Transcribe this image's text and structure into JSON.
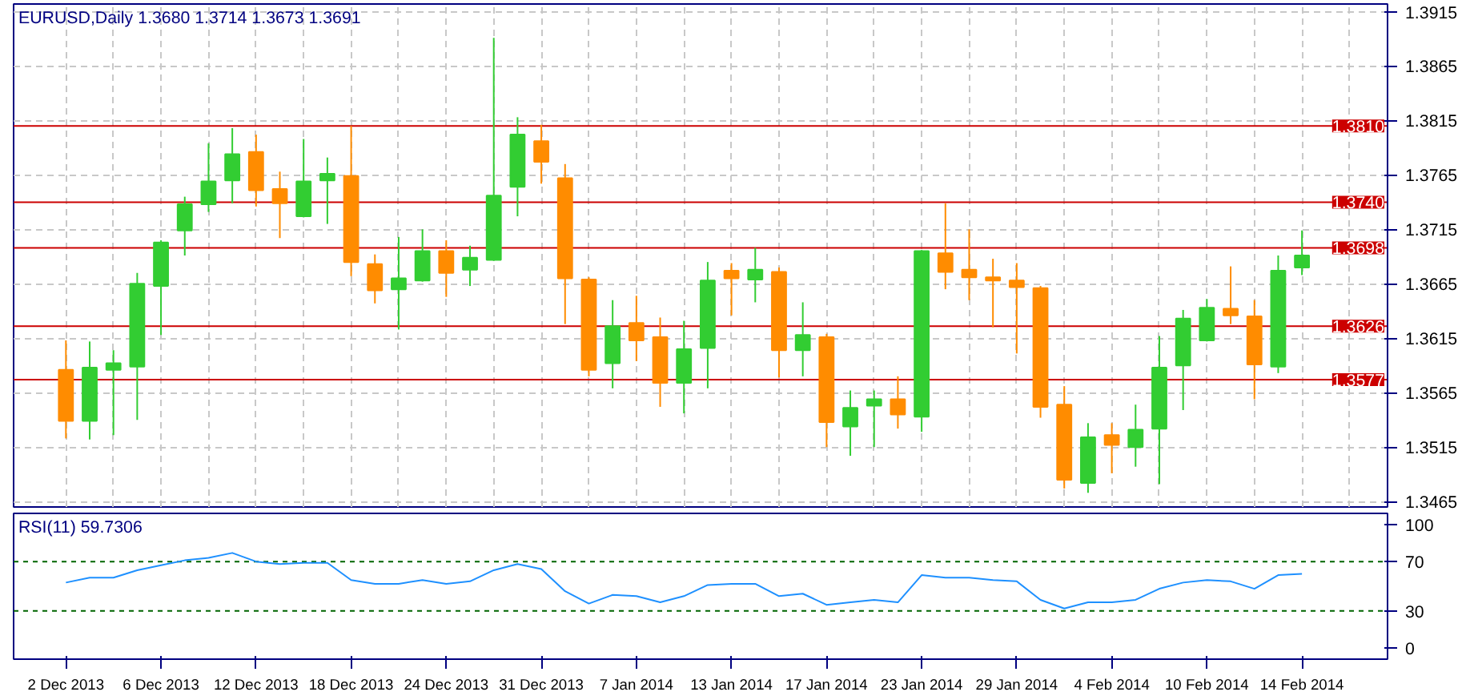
{
  "chart_data": [
    {
      "type": "candlestick",
      "title": "EURUSD,Daily  1.3680 1.3714 1.3673 1.3691",
      "ohlc": [
        [
          1.3586,
          1.3613,
          1.3523,
          1.3539
        ],
        [
          1.3539,
          1.3612,
          1.3522,
          1.3588
        ],
        [
          1.3586,
          1.3604,
          1.3526,
          1.3592
        ],
        [
          1.3589,
          1.3675,
          1.354,
          1.3665
        ],
        [
          1.3663,
          1.3705,
          1.3618,
          1.3703
        ],
        [
          1.3714,
          1.3745,
          1.3691,
          1.3738
        ],
        [
          1.3738,
          1.3794,
          1.3731,
          1.3759
        ],
        [
          1.376,
          1.3808,
          1.3739,
          1.3784
        ],
        [
          1.3786,
          1.3802,
          1.3736,
          1.3751
        ],
        [
          1.3752,
          1.3768,
          1.3707,
          1.3739
        ],
        [
          1.3727,
          1.3798,
          1.3726,
          1.3759
        ],
        [
          1.376,
          1.3781,
          1.372,
          1.3766
        ],
        [
          1.3764,
          1.381,
          1.3672,
          1.3685
        ],
        [
          1.3683,
          1.3692,
          1.3647,
          1.3659
        ],
        [
          1.366,
          1.3708,
          1.3623,
          1.367
        ],
        [
          1.3668,
          1.3715,
          1.3667,
          1.3695
        ],
        [
          1.3695,
          1.3705,
          1.3653,
          1.3675
        ],
        [
          1.3678,
          1.37,
          1.3663,
          1.3689
        ],
        [
          1.3687,
          1.3891,
          1.3686,
          1.3746
        ],
        [
          1.3754,
          1.3818,
          1.3727,
          1.3802
        ],
        [
          1.3796,
          1.3811,
          1.3757,
          1.3777
        ],
        [
          1.3762,
          1.3775,
          1.3628,
          1.367
        ],
        [
          1.3669,
          1.3671,
          1.358,
          1.3586
        ],
        [
          1.3592,
          1.365,
          1.3569,
          1.3626
        ],
        [
          1.3629,
          1.3654,
          1.3594,
          1.3613
        ],
        [
          1.3616,
          1.3634,
          1.3552,
          1.3574
        ],
        [
          1.3574,
          1.3631,
          1.3546,
          1.3605
        ],
        [
          1.3606,
          1.3685,
          1.3569,
          1.3668
        ],
        [
          1.3677,
          1.3684,
          1.3636,
          1.367
        ],
        [
          1.3669,
          1.3698,
          1.3648,
          1.3678
        ],
        [
          1.3676,
          1.368,
          1.3579,
          1.3604
        ],
        [
          1.3604,
          1.3648,
          1.358,
          1.3618
        ],
        [
          1.3616,
          1.3619,
          1.3515,
          1.3538
        ],
        [
          1.3534,
          1.3567,
          1.3507,
          1.3551
        ],
        [
          1.3553,
          1.3567,
          1.3515,
          1.3559
        ],
        [
          1.3559,
          1.358,
          1.3532,
          1.3545
        ],
        [
          1.3543,
          1.3696,
          1.3529,
          1.3695
        ],
        [
          1.3693,
          1.3739,
          1.366,
          1.3676
        ],
        [
          1.3678,
          1.3715,
          1.365,
          1.3671
        ],
        [
          1.3671,
          1.3688,
          1.3625,
          1.3668
        ],
        [
          1.3668,
          1.3684,
          1.3601,
          1.3662
        ],
        [
          1.3661,
          1.3663,
          1.3542,
          1.3552
        ],
        [
          1.3554,
          1.3571,
          1.3477,
          1.3485
        ],
        [
          1.3482,
          1.3537,
          1.3473,
          1.3524
        ],
        [
          1.3526,
          1.3537,
          1.3491,
          1.3517
        ],
        [
          1.3515,
          1.3554,
          1.3497,
          1.3531
        ],
        [
          1.3532,
          1.3617,
          1.3481,
          1.3588
        ],
        [
          1.359,
          1.3641,
          1.3549,
          1.3633
        ],
        [
          1.3613,
          1.3651,
          1.3612,
          1.3643
        ],
        [
          1.3642,
          1.3681,
          1.3628,
          1.3636
        ],
        [
          1.3635,
          1.365,
          1.3559,
          1.3591
        ],
        [
          1.3589,
          1.3691,
          1.3583,
          1.3677
        ],
        [
          1.368,
          1.3714,
          1.3673,
          1.3691
        ]
      ],
      "colors": [
        "#ff8c00",
        "#32cd32",
        "#32cd32",
        "#32cd32",
        "#32cd32",
        "#32cd32",
        "#32cd32",
        "#32cd32",
        "#ff8c00",
        "#ff8c00",
        "#32cd32",
        "#32cd32",
        "#ff8c00",
        "#ff8c00",
        "#32cd32",
        "#32cd32",
        "#ff8c00",
        "#32cd32",
        "#32cd32",
        "#32cd32",
        "#ff8c00",
        "#ff8c00",
        "#ff8c00",
        "#32cd32",
        "#ff8c00",
        "#ff8c00",
        "#32cd32",
        "#32cd32",
        "#ff8c00",
        "#32cd32",
        "#ff8c00",
        "#32cd32",
        "#ff8c00",
        "#32cd32",
        "#32cd32",
        "#ff8c00",
        "#32cd32",
        "#ff8c00",
        "#ff8c00",
        "#ff8c00",
        "#ff8c00",
        "#ff8c00",
        "#ff8c00",
        "#32cd32",
        "#ff8c00",
        "#32cd32",
        "#32cd32",
        "#32cd32",
        "#32cd32",
        "#ff8c00",
        "#ff8c00",
        "#32cd32",
        "#32cd32"
      ],
      "ylim": [
        1.346,
        1.3922
      ],
      "yticks": [
        1.3465,
        1.3515,
        1.3565,
        1.3615,
        1.3665,
        1.3715,
        1.3765,
        1.3815,
        1.3865,
        1.3915
      ],
      "grid": true,
      "tick_labels": "y",
      "ref_lines": [
        {
          "axis": "y",
          "value": 1.381,
          "label": "1.3810",
          "color": "#cc0000"
        },
        {
          "axis": "y",
          "value": 1.374,
          "label": "1.3740",
          "color": "#cc0000"
        },
        {
          "axis": "y",
          "value": 1.3698,
          "label": "1.3698",
          "color": "#cc0000"
        },
        {
          "axis": "y",
          "value": 1.3626,
          "label": "1.3626",
          "color": "#cc0000"
        },
        {
          "axis": "y",
          "value": 1.3577,
          "label": "1.3577",
          "color": "#cc0000"
        }
      ]
    },
    {
      "type": "line",
      "title": "RSI(11) 59.7306",
      "categories": [
        "2 Dec 2013",
        null,
        null,
        null,
        "6 Dec 2013",
        null,
        null,
        null,
        "12 Dec 2013",
        null,
        null,
        null,
        "18 Dec 2013",
        null,
        null,
        null,
        "24 Dec 2013",
        null,
        null,
        null,
        "31 Dec 2013",
        null,
        null,
        null,
        "7 Jan 2014",
        null,
        null,
        null,
        "13 Jan 2014",
        null,
        null,
        null,
        "17 Jan 2014",
        null,
        null,
        null,
        "23 Jan 2014",
        null,
        null,
        null,
        "29 Jan 2014",
        null,
        null,
        null,
        "4 Feb 2014",
        null,
        null,
        null,
        "10 Feb 2014",
        null,
        null,
        null,
        "14 Feb 2014"
      ],
      "series": [
        {
          "color": "#1e90ff",
          "values": [
            53,
            57,
            57,
            63,
            67,
            71,
            73,
            77,
            70,
            68,
            69,
            69,
            55,
            52,
            52,
            55,
            52,
            54,
            63,
            68,
            64,
            46,
            36,
            43,
            42,
            37,
            42,
            51,
            52,
            52,
            42,
            44,
            35,
            37,
            39,
            37,
            59,
            57,
            57,
            55,
            54,
            39,
            32,
            37,
            37,
            39,
            48,
            53,
            55,
            54,
            48,
            59,
            60
          ]
        }
      ],
      "ylim": [
        -9,
        109
      ],
      "yticks": [
        0,
        30,
        70,
        100
      ],
      "ref_lines": [
        {
          "axis": "y",
          "value": 30,
          "color": "#006400",
          "line_style": "dashed"
        },
        {
          "axis": "y",
          "value": 70,
          "color": "#006400",
          "line_style": "dashed"
        }
      ]
    }
  ]
}
